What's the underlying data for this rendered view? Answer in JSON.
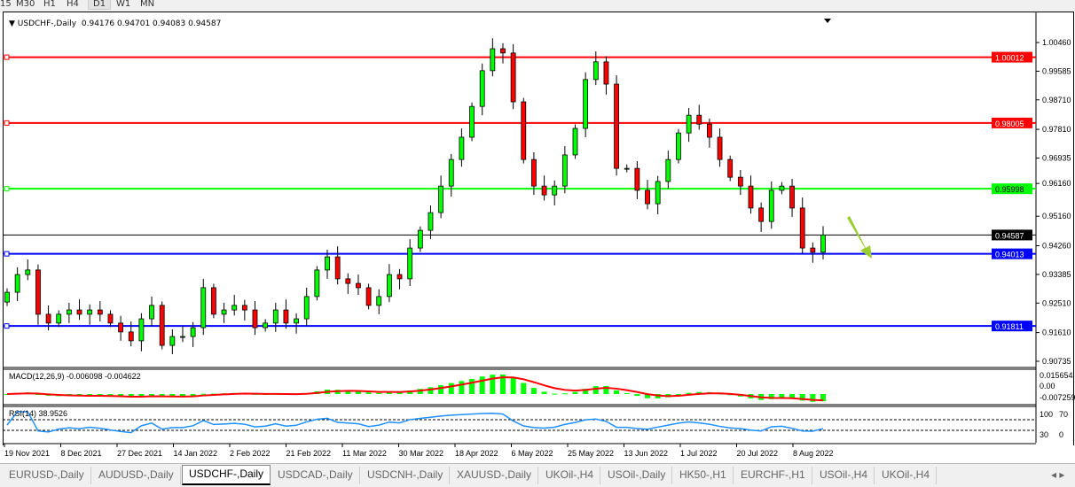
{
  "toolbar": {
    "timeframes": [
      "15",
      "M30",
      "H1",
      "H4",
      "D1",
      "W1",
      "MN"
    ],
    "active": "D1"
  },
  "header": {
    "symbol": "USDCHF-,Daily",
    "ohlc": "0.94176 0.94701 0.94083 0.94587"
  },
  "macd": {
    "label": "MACD(12,26,9) -0.006098 -0.004622",
    "axis": [
      "0.015654",
      "0.00",
      "-0.007259"
    ]
  },
  "rsi": {
    "label": "RSI(14) 38.9526",
    "axis": [
      "100",
      "70",
      "30",
      "0"
    ]
  },
  "tabs": [
    "EURUSD-,Daily",
    "AUDUSD-,Daily",
    "USDCHF-,Daily",
    "USDCAD-,Daily",
    "USDCNH-,Daily",
    "XAUUSD-,Daily",
    "UKOil-,H4",
    "USOil-,Daily",
    "HK50-,H1",
    "EURCHF-,H1",
    "USOil-,H4",
    "UKOil-,H4"
  ],
  "active_tab": "USDCHF-,Daily",
  "colors": {
    "bull": "#00ff00",
    "bear": "#ff0000",
    "resistance": "#ff0000",
    "support_green": "#00ff00",
    "support_blue": "#0000ff",
    "macd_signal": "#ff0000",
    "rsi": "#1e90ff",
    "arrow": "#9acd32"
  },
  "chart_data": {
    "type": "candlestick",
    "ylim": [
      0.9045,
      1.0075
    ],
    "y_ticks": [
      "1.00460",
      "0.99585",
      "0.98710",
      "0.97810",
      "0.96935",
      "0.96160",
      "0.95160",
      "0.94260",
      "0.93385",
      "0.92510",
      "0.91610",
      "0.90735"
    ],
    "x_ticks": [
      "19 Nov 2021",
      "8 Dec 2021",
      "27 Dec 2021",
      "14 Jan 2022",
      "2 Feb 2022",
      "21 Feb 2022",
      "11 Mar 2022",
      "30 Mar 2022",
      "18 Apr 2022",
      "6 May 2022",
      "25 May 2022",
      "13 Jun 2022",
      "1 Jul 2022",
      "20 Jul 2022",
      "8 Aug 2022"
    ],
    "closes": [
      0.9284,
      0.9338,
      0.9352,
      0.9217,
      0.919,
      0.9217,
      0.923,
      0.9217,
      0.923,
      0.9217,
      0.919,
      0.9163,
      0.9136,
      0.9203,
      0.9244,
      0.9122,
      0.9149,
      0.9149,
      0.9176,
      0.9298,
      0.9217,
      0.923,
      0.9244,
      0.923,
      0.9176,
      0.919,
      0.923,
      0.919,
      0.9203,
      0.9271,
      0.9352,
      0.9392,
      0.9325,
      0.9311,
      0.9298,
      0.9244,
      0.9271,
      0.9338,
      0.9325,
      0.9419,
      0.9473,
      0.9527,
      0.9608,
      0.9689,
      0.9757,
      0.9851,
      0.996,
      1.0027,
      1.0014,
      0.9865,
      0.9689,
      0.9608,
      0.9581,
      0.9608,
      0.9703,
      0.9784,
      0.9933,
      0.9987,
      0.9919,
      0.9662,
      0.9662,
      0.9595,
      0.9554,
      0.9622,
      0.9689,
      0.977,
      0.9824,
      0.9797,
      0.9757,
      0.9689,
      0.9635,
      0.9608,
      0.9541,
      0.95,
      0.9595,
      0.9608,
      0.9541,
      0.9419,
      0.9406,
      0.94587
    ],
    "levels": [
      {
        "value": "1.00012",
        "color": "#ff0000"
      },
      {
        "value": "0.98005",
        "color": "#ff0000"
      },
      {
        "value": "0.95998",
        "color": "#00ff00"
      },
      {
        "value": "0.94013",
        "color": "#0000ff"
      },
      {
        "value": "0.91811",
        "color": "#0000ff"
      }
    ],
    "current": "0.94587"
  }
}
